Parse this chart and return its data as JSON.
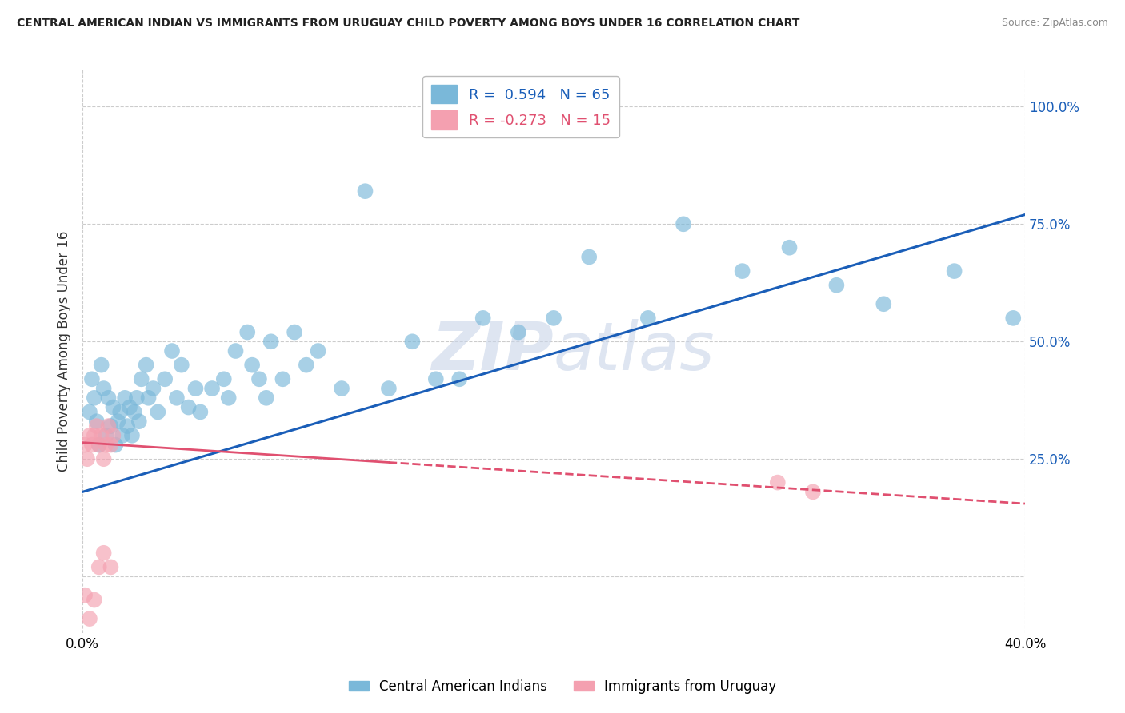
{
  "title": "CENTRAL AMERICAN INDIAN VS IMMIGRANTS FROM URUGUAY CHILD POVERTY AMONG BOYS UNDER 16 CORRELATION CHART",
  "source": "Source: ZipAtlas.com",
  "ylabel": "Child Poverty Among Boys Under 16",
  "xlim": [
    0.0,
    0.4
  ],
  "ylim": [
    -0.12,
    1.08
  ],
  "xticks": [
    0.0,
    0.1,
    0.2,
    0.3,
    0.4
  ],
  "xticklabels": [
    "0.0%",
    "",
    "",
    "",
    "40.0%"
  ],
  "yticks": [
    0.0,
    0.25,
    0.5,
    0.75,
    1.0
  ],
  "yticklabels": [
    "",
    "25.0%",
    "50.0%",
    "75.0%",
    "100.0%"
  ],
  "R_blue": 0.594,
  "N_blue": 65,
  "R_pink": -0.273,
  "N_pink": 15,
  "legend_label_blue": "Central American Indians",
  "legend_label_pink": "Immigrants from Uruguay",
  "blue_color": "#7ab8d9",
  "pink_color": "#f4a0b0",
  "line_blue": "#1a5eb8",
  "line_pink": "#e05070",
  "watermark": "ZIPAtlas",
  "watermark_color": "#c8d4e8",
  "blue_x": [
    0.003,
    0.004,
    0.005,
    0.006,
    0.007,
    0.008,
    0.009,
    0.01,
    0.011,
    0.012,
    0.013,
    0.014,
    0.015,
    0.016,
    0.017,
    0.018,
    0.019,
    0.02,
    0.021,
    0.022,
    0.023,
    0.024,
    0.025,
    0.027,
    0.028,
    0.03,
    0.032,
    0.035,
    0.038,
    0.04,
    0.042,
    0.045,
    0.048,
    0.05,
    0.055,
    0.06,
    0.062,
    0.065,
    0.07,
    0.072,
    0.075,
    0.078,
    0.08,
    0.085,
    0.09,
    0.095,
    0.1,
    0.11,
    0.12,
    0.13,
    0.14,
    0.15,
    0.16,
    0.17,
    0.185,
    0.2,
    0.215,
    0.24,
    0.255,
    0.28,
    0.3,
    0.32,
    0.34,
    0.37,
    0.395
  ],
  "blue_y": [
    0.35,
    0.42,
    0.38,
    0.33,
    0.28,
    0.45,
    0.4,
    0.3,
    0.38,
    0.32,
    0.36,
    0.28,
    0.33,
    0.35,
    0.3,
    0.38,
    0.32,
    0.36,
    0.3,
    0.35,
    0.38,
    0.33,
    0.42,
    0.45,
    0.38,
    0.4,
    0.35,
    0.42,
    0.48,
    0.38,
    0.45,
    0.36,
    0.4,
    0.35,
    0.4,
    0.42,
    0.38,
    0.48,
    0.52,
    0.45,
    0.42,
    0.38,
    0.5,
    0.42,
    0.52,
    0.45,
    0.48,
    0.4,
    0.82,
    0.4,
    0.5,
    0.42,
    0.42,
    0.55,
    0.52,
    0.55,
    0.68,
    0.55,
    0.75,
    0.65,
    0.7,
    0.62,
    0.58,
    0.65,
    0.55
  ],
  "pink_x": [
    0.001,
    0.002,
    0.003,
    0.004,
    0.005,
    0.006,
    0.007,
    0.008,
    0.009,
    0.01,
    0.011,
    0.012,
    0.013,
    0.295,
    0.31
  ],
  "pink_y": [
    0.28,
    0.25,
    0.3,
    0.28,
    0.3,
    0.32,
    0.28,
    0.3,
    0.25,
    0.28,
    0.32,
    0.28,
    0.3,
    0.2,
    0.18
  ],
  "pink_low_x": [
    0.001,
    0.003,
    0.005,
    0.007,
    0.009,
    0.012
  ],
  "pink_low_y": [
    -0.04,
    -0.09,
    -0.05,
    0.02,
    0.05,
    0.02
  ],
  "blue_scatter_size": 200,
  "pink_scatter_size": 200,
  "blue_line_x0": 0.0,
  "blue_line_x1": 0.4,
  "blue_line_y0": 0.18,
  "blue_line_y1": 0.77,
  "pink_line_x0": 0.0,
  "pink_line_x1": 0.4,
  "pink_line_y0": 0.285,
  "pink_line_y1": 0.155
}
